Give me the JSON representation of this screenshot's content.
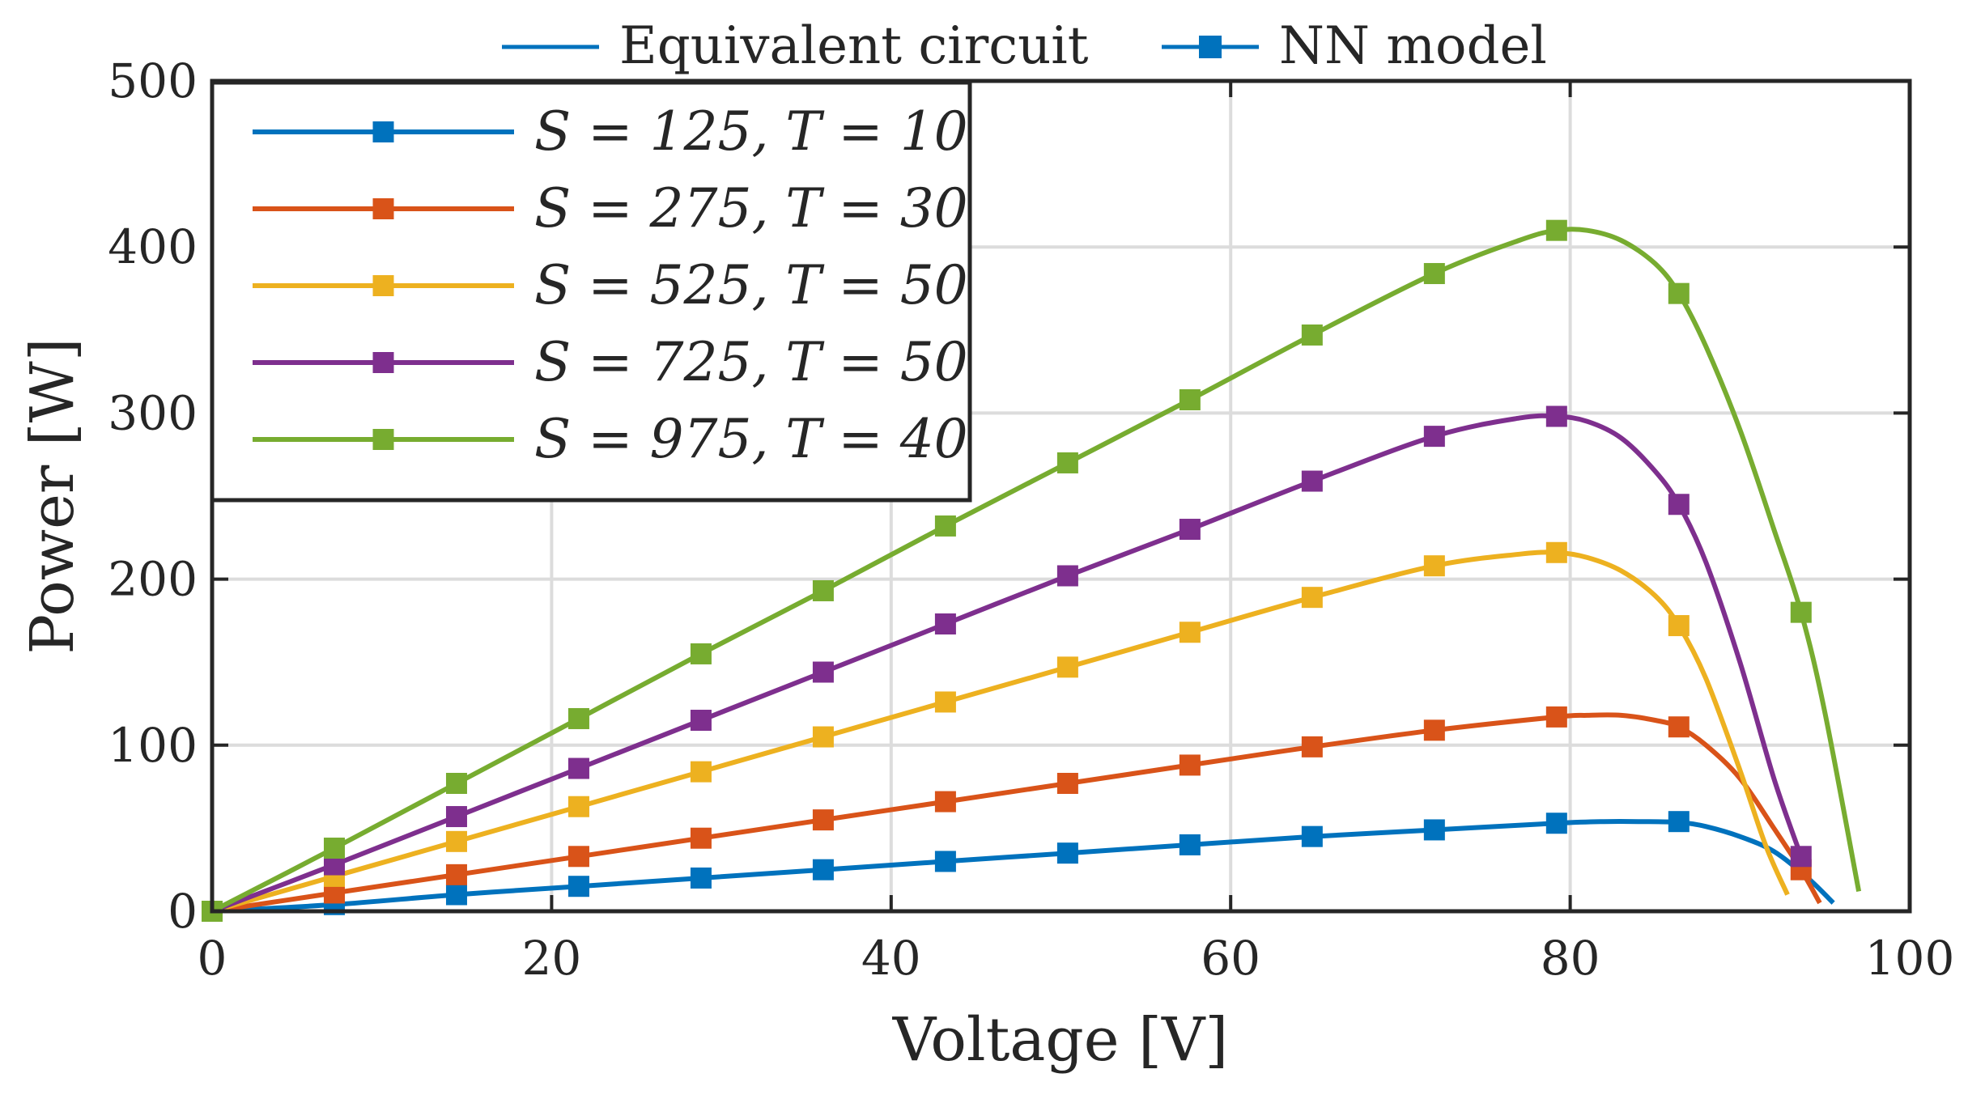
{
  "chart_data": {
    "type": "line",
    "title": "",
    "xlabel": "Voltage [V]",
    "ylabel": "Power [W]",
    "xlim": [
      0,
      100
    ],
    "ylim": [
      0,
      500
    ],
    "xticks": [
      0,
      20,
      40,
      60,
      80,
      100
    ],
    "yticks": [
      0,
      100,
      200,
      300,
      400,
      500
    ],
    "xtick_labels": [
      "0",
      "20",
      "40",
      "60",
      "80",
      "100"
    ],
    "ytick_labels": [
      "0",
      "100",
      "200",
      "300",
      "400",
      "500"
    ],
    "grid": true,
    "style_legend": {
      "placement": "top-outside",
      "entries": [
        {
          "label": "Equivalent circuit",
          "marker": "none"
        },
        {
          "label": "NN model",
          "marker": "square"
        }
      ]
    },
    "series_legend": {
      "placement": "top-left",
      "entries": [
        "S = 125, T = 10",
        "S = 275, T = 30",
        "S = 525, T = 50",
        "S = 725, T = 50",
        "S = 975, T = 40"
      ]
    },
    "marker_x": [
      0,
      7.2,
      14.4,
      21.6,
      28.8,
      36.0,
      43.2,
      50.4,
      57.6,
      64.8,
      72.0,
      79.2,
      86.4,
      93.6
    ],
    "series": [
      {
        "name": "S = 125, T = 10",
        "color": "#0072BD",
        "curve_x": [
          0,
          7.2,
          14.4,
          21.6,
          28.8,
          36.0,
          43.2,
          50.4,
          57.6,
          64.8,
          72.0,
          79.2,
          82,
          84,
          86.4,
          88,
          90,
          92,
          94,
          95.5
        ],
        "curve_y": [
          0,
          4,
          10,
          15,
          20,
          25,
          30,
          35,
          40,
          45,
          49,
          53,
          54,
          54,
          53.5,
          51,
          45,
          36,
          20,
          5
        ],
        "markers": [
          0,
          4,
          10,
          15,
          20,
          25,
          30,
          35,
          40,
          45,
          49,
          53,
          54,
          null
        ]
      },
      {
        "name": "S = 275, T = 30",
        "color": "#D95319",
        "curve_x": [
          0,
          7.2,
          14.4,
          21.6,
          28.8,
          36.0,
          43.2,
          50.4,
          57.6,
          64.8,
          72.0,
          79.2,
          81,
          83,
          85,
          86.4,
          88,
          90,
          92,
          93.6,
          94.7
        ],
        "curve_y": [
          0,
          11,
          22,
          33,
          44,
          55,
          66,
          77,
          88,
          99,
          109,
          117,
          118,
          118,
          115,
          111,
          100,
          80,
          50,
          25,
          5
        ],
        "markers": [
          0,
          11,
          22,
          33,
          44,
          55,
          66,
          77,
          88,
          99,
          109,
          117,
          111,
          25
        ]
      },
      {
        "name": "S = 525, T = 50",
        "color": "#EDB120",
        "curve_x": [
          0,
          7.2,
          14.4,
          21.6,
          28.8,
          36.0,
          43.2,
          50.4,
          57.6,
          64.8,
          72.0,
          77,
          79.2,
          81,
          83,
          85,
          86.4,
          88,
          90,
          91.5,
          92.8
        ],
        "curve_y": [
          0,
          21,
          42,
          63,
          84,
          105,
          126,
          147,
          168,
          189,
          208,
          215,
          216,
          213,
          205,
          190,
          172,
          140,
          85,
          40,
          10
        ],
        "markers": [
          0,
          21,
          42,
          63,
          84,
          105,
          126,
          147,
          168,
          189,
          208,
          216,
          172,
          null
        ]
      },
      {
        "name": "S = 725, T = 50",
        "color": "#7E2F8E",
        "curve_x": [
          0,
          7.2,
          14.4,
          21.6,
          28.8,
          36.0,
          43.2,
          50.4,
          57.6,
          64.8,
          72.0,
          77,
          79.2,
          81,
          83,
          85,
          86.4,
          88,
          90,
          92,
          93.6
        ],
        "curve_y": [
          0,
          28,
          57,
          86,
          115,
          144,
          173,
          202,
          230,
          259,
          286,
          297,
          298,
          295,
          285,
          265,
          245,
          210,
          150,
          80,
          33
        ],
        "markers": [
          0,
          28,
          57,
          86,
          115,
          144,
          173,
          202,
          230,
          259,
          286,
          298,
          245,
          33
        ]
      },
      {
        "name": "S = 975, T = 40",
        "color": "#77AC30",
        "curve_x": [
          0,
          7.2,
          14.4,
          21.6,
          28.8,
          36.0,
          43.2,
          50.4,
          57.6,
          64.8,
          72.0,
          77,
          79.2,
          81,
          83,
          85,
          86.4,
          88,
          90,
          92,
          93.6,
          95,
          97
        ],
        "curve_y": [
          0,
          38,
          77,
          116,
          155,
          193,
          232,
          270,
          308,
          347,
          384,
          404,
          410,
          410,
          404,
          390,
          372,
          340,
          290,
          230,
          180,
          120,
          12
        ],
        "markers": [
          0,
          38,
          77,
          116,
          155,
          193,
          232,
          270,
          308,
          347,
          384,
          410,
          372,
          180
        ]
      }
    ]
  }
}
